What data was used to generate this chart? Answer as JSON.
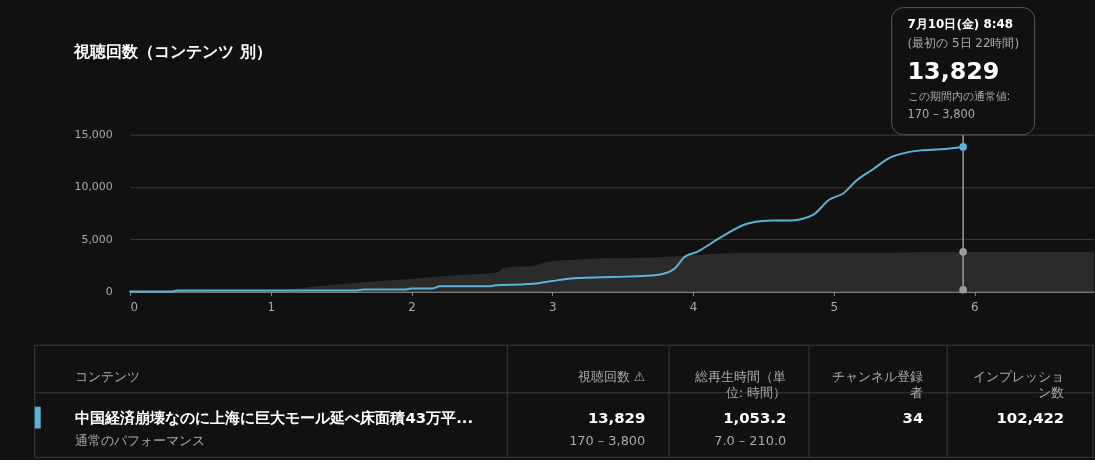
{
  "chart_data": [
    {
      "type": "line",
      "title": "視聴回数（コンテンツ 別）",
      "xlim": [
        0,
        6.85
      ],
      "xticks": [
        0,
        1,
        2,
        3,
        4,
        5,
        6
      ],
      "ylim": [
        0,
        15000
      ],
      "yticks": [
        0,
        {
          "value": 5000,
          "label": "5,000"
        },
        {
          "value": 10000,
          "label": "10,000"
        },
        {
          "value": 15000,
          "label": "15,000"
        }
      ],
      "grid": "y",
      "legend": "bottom",
      "series": [
        {
          "type": "area",
          "color": "#2b2b2b",
          "x": [
            0,
            1.0,
            1.33,
            1.66,
            1.99,
            2.37,
            2.6,
            2.67,
            2.88,
            2.95,
            3.21,
            3.79,
            4.03,
            4.39,
            5.22,
            5.92,
            6.85
          ],
          "values": [
            0,
            100,
            500,
            900,
            1200,
            1600,
            1800,
            2300,
            2500,
            2800,
            3100,
            3300,
            3500,
            3700,
            3700,
            3800,
            3800
          ]
        },
        {
          "type": "line",
          "name": "中国経済崩壊なのに上海に巨大モール延べ床面積43万平...",
          "color": "#5ab4d9",
          "x": [
            0,
            0.3,
            0.33,
            1.6,
            1.66,
            1.95,
            2.0,
            2.15,
            2.2,
            2.55,
            2.6,
            2.8,
            2.9,
            3.0,
            3.1,
            3.2,
            3.43,
            3.67,
            3.79,
            3.87,
            3.94,
            4.03,
            4.2,
            4.39,
            4.56,
            4.7,
            4.85,
            4.97,
            5.07,
            5.16,
            5.28,
            5.4,
            5.52,
            5.62,
            5.76,
            5.92
          ],
          "values": [
            0,
            0,
            100,
            100,
            200,
            200,
            300,
            300,
            500,
            500,
            600,
            700,
            800,
            1000,
            1200,
            1300,
            1400,
            1500,
            1700,
            2200,
            3300,
            3800,
            5200,
            6500,
            6800,
            6800,
            7300,
            8800,
            9400,
            10600,
            11700,
            12800,
            13300,
            13500,
            13600,
            13829
          ]
        },
        {
          "type": "scatter",
          "color": "#9e9e9e",
          "x": [
            5.92,
            5.92
          ],
          "values": [
            3800,
            170
          ]
        },
        {
          "type": "scatter",
          "color": "#5ab4d9",
          "x": [
            5.92
          ],
          "values": [
            13829
          ]
        }
      ],
      "ref_lines": [
        {
          "axis": "x",
          "value": 5.92,
          "color": "#9e9e9e"
        }
      ],
      "annotations": [
        "7月10日(金) 8:48",
        "(最初の 5日 22時間)",
        "13,829",
        "この期間内の通常値:",
        "170 – 3,800"
      ]
    },
    {
      "type": "other",
      "annotations": [
        "コンテンツ",
        "視聴回数 ⚠",
        "総再生時間（単位: 時間）",
        "チャンネル登録者",
        "インプレッション数",
        "通常のパフォーマンス",
        "13,829",
        "170 – 3,800",
        "1,053.2",
        "7.0 – 210.0",
        "34",
        "102,422"
      ]
    }
  ]
}
